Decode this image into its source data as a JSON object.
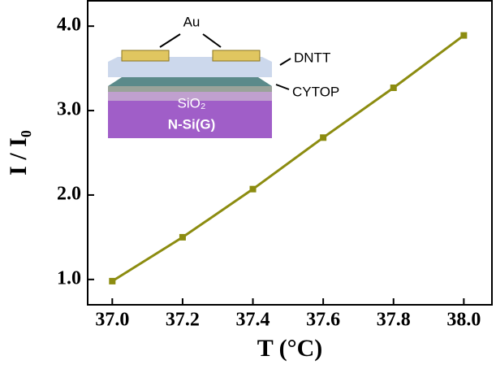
{
  "chart_data": {
    "type": "line",
    "x_label": "T (°C)",
    "y_label": "I / I₀",
    "x": [
      37.0,
      37.2,
      37.4,
      37.6,
      37.8,
      38.0
    ],
    "series": [
      {
        "color": "#8c8c10",
        "values": [
          0.98,
          1.5,
          2.07,
          2.68,
          3.27,
          3.89
        ]
      }
    ],
    "xlim": [
      36.93,
      38.08
    ],
    "xticks": [
      {
        "value": 37.0,
        "label": "37.0"
      },
      37.2,
      37.4,
      37.6,
      37.8,
      {
        "value": 38.0,
        "label": "38.0"
      }
    ],
    "ylim": [
      0.7,
      4.3
    ],
    "yticks": [
      {
        "value": 1.0,
        "label": "1.0"
      },
      {
        "value": 2.0,
        "label": "2.0"
      },
      {
        "value": 3.0,
        "label": "3.0"
      },
      {
        "value": 4.0,
        "label": "4.0"
      }
    ],
    "grid": false,
    "inset": {
      "labels": {
        "au": "Au",
        "dntt": "DNTT",
        "cytop": "CYTOP",
        "sio2": "SiO₂",
        "nsi": "N-Si(G)"
      }
    }
  }
}
